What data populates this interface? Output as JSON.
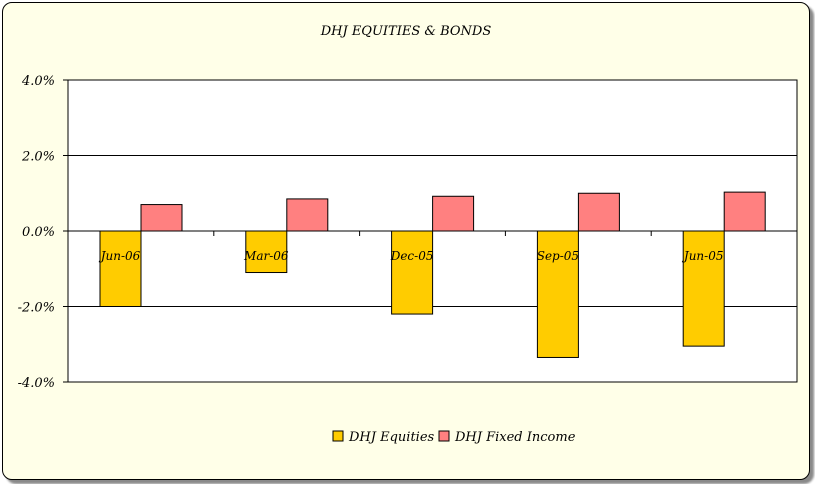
{
  "chart_data": {
    "type": "bar",
    "title": "DHJ EQUITIES & BONDS",
    "categories": [
      "Jun-06",
      "Mar-06",
      "Dec-05",
      "Sep-05",
      "Jun-05"
    ],
    "series": [
      {
        "name": "DHJ Equities",
        "values": [
          -2.0,
          -1.1,
          -2.2,
          -3.35,
          -3.05
        ],
        "color": "#ffcc00"
      },
      {
        "name": "DHJ Fixed Income",
        "values": [
          0.7,
          0.85,
          0.92,
          1.0,
          1.03
        ],
        "color": "#ff8080"
      }
    ],
    "ylim": [
      -4.0,
      4.0
    ],
    "yticks": [
      "4.0%",
      "2.0%",
      "0.0%",
      "-2.0%",
      "-4.0%"
    ],
    "grid": true,
    "legend": "bottom"
  }
}
